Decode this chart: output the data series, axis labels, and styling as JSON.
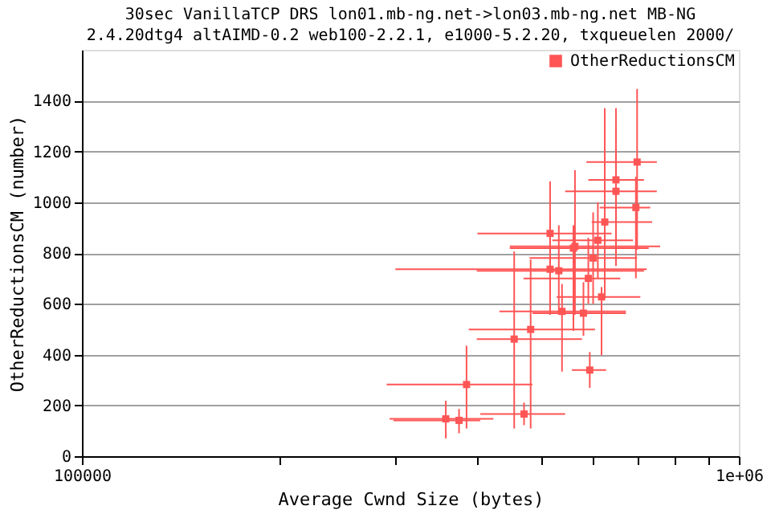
{
  "chart_data": {
    "type": "scatter",
    "title": "30sec VanillaTCP DRS lon01.mb-ng.net->lon03.mb-ng.net MB-NG",
    "subtitle": "2.4.20dtg4 altAIMD-0.2 web100-2.2.1, e1000-5.2.20, txqueuelen 2000/",
    "xlabel": "Average Cwnd Size (bytes)",
    "ylabel": "OtherReductionsCM (number)",
    "log": "x",
    "xlim": [
      100000,
      1000000
    ],
    "xticks": [
      100000,
      {
        "value": 200000,
        "label": null
      },
      {
        "value": 300000,
        "label": null
      },
      {
        "value": 400000,
        "label": null
      },
      {
        "value": 500000,
        "label": null
      },
      {
        "value": 600000,
        "label": null
      },
      {
        "value": 700000,
        "label": null
      },
      {
        "value": 800000,
        "label": null
      },
      {
        "value": 900000,
        "label": null
      },
      {
        "value": 1000000,
        "label": "1e+06"
      }
    ],
    "ylim": [
      0,
      1600
    ],
    "yticks": [
      0,
      200,
      400,
      600,
      800,
      1000,
      1200,
      1400
    ],
    "grid": "y",
    "legend": "top right",
    "marker": "square",
    "series": [
      {
        "name": "OtherReductionsCM",
        "color": "#ff5555",
        "x": [
          358000,
          375000,
          471000,
          385000,
          593000,
          455000,
          482000,
          538000,
          580000,
          618000,
          516000,
          532000,
          560000,
          700000,
          650000,
          625000,
          563000,
          516000,
          697000,
          650000,
          600000,
          610000,
          590000
        ],
        "values": [
          147,
          141,
          166,
          282,
          339,
          461,
          499,
          570,
          563,
          627,
          736,
          730,
          819,
          1158,
          1088,
          922,
          826,
          877,
          979,
          1043,
          780,
          850,
          700
        ],
        "xerrors": [
          [
            294000,
            423000
          ],
          [
            298000,
            404000
          ],
          [
            404000,
            544000
          ],
          [
            291000,
            485000
          ],
          [
            557000,
            628000
          ],
          [
            399000,
            577000
          ],
          [
            388000,
            604000
          ],
          [
            432000,
            673000
          ],
          [
            485000,
            673000
          ],
          [
            528000,
            708000
          ],
          [
            300000,
            724000
          ],
          [
            399000,
            717000
          ],
          [
            448000,
            729000
          ],
          [
            586000,
            750000
          ],
          [
            590000,
            717000
          ],
          [
            597000,
            738000
          ],
          [
            448000,
            759000
          ],
          [
            400000,
            640000
          ],
          [
            614000,
            733000
          ],
          [
            544000,
            750000
          ],
          [
            480000,
            700000
          ],
          [
            520000,
            690000
          ],
          [
            470000,
            660000
          ]
        ],
        "errors": [
          [
            70,
            218
          ],
          [
            90,
            186
          ],
          [
            122,
            211
          ],
          [
            109,
            435
          ],
          [
            269,
            410
          ],
          [
            109,
            806
          ],
          [
            109,
            774
          ],
          [
            333,
            678
          ],
          [
            474,
            685
          ],
          [
            397,
            666
          ],
          [
            557,
            941
          ],
          [
            557,
            909
          ],
          [
            493,
            909
          ],
          [
            813,
            1446
          ],
          [
            749,
            1370
          ],
          [
            621,
            1370
          ],
          [
            557,
            1126
          ],
          [
            557,
            1082
          ],
          [
            700,
            1100
          ],
          [
            800,
            1300
          ],
          [
            600,
            960
          ],
          [
            700,
            1000
          ],
          [
            600,
            860
          ]
        ]
      }
    ]
  }
}
